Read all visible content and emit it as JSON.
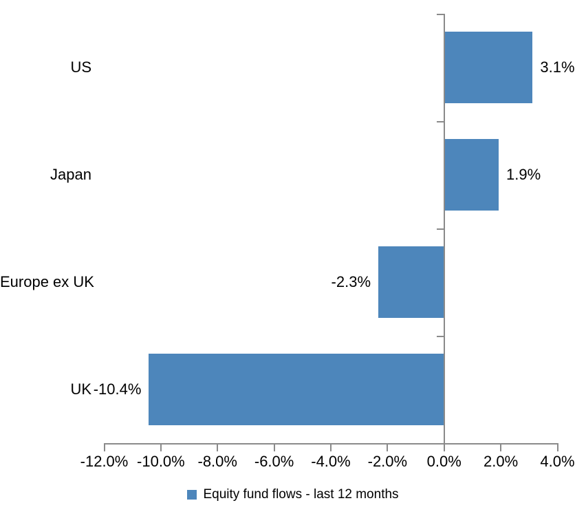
{
  "chart_data": {
    "type": "bar",
    "orientation": "horizontal",
    "title": "",
    "categories": [
      "US",
      "Japan",
      "Europe ex UK",
      "UK"
    ],
    "series": [
      {
        "name": "Equity fund flows - last 12 months",
        "values": [
          3.1,
          1.9,
          -2.3,
          -10.4
        ],
        "value_labels": [
          "3.1%",
          "1.9%",
          "-2.3%",
          "-10.4%"
        ]
      }
    ],
    "x_axis": {
      "min": -12,
      "max": 4,
      "tick_step": 2,
      "ticks": [
        -12,
        -10,
        -8,
        -6,
        -4,
        -2,
        0,
        2,
        4
      ],
      "tick_labels": [
        "-12.0%",
        "-10.0%",
        "-8.0%",
        "-6.0%",
        "-4.0%",
        "-2.0%",
        "0.0%",
        "2.0%",
        "4.0%"
      ]
    },
    "grid": false,
    "legend": {
      "label": "Equity fund flows - last 12 months",
      "position": "bottom-center"
    },
    "colors": {
      "bar": "#4d86bb",
      "axis": "#8a8a8a",
      "text": "#000000",
      "background": "#ffffff"
    }
  }
}
